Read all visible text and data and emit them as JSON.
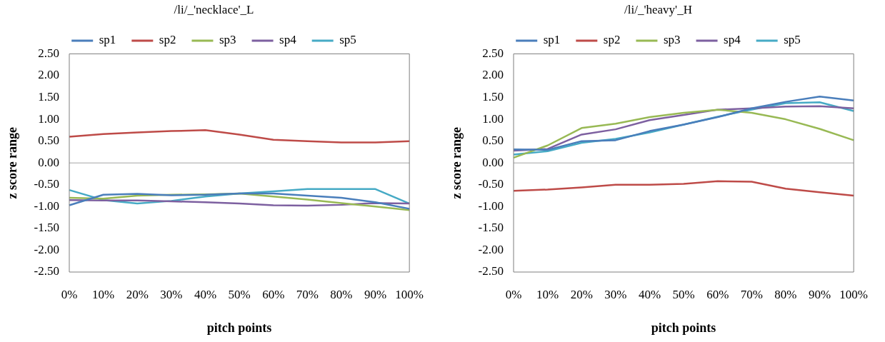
{
  "chart_data": [
    {
      "type": "line",
      "title": "/li/_'necklace'_L",
      "xlabel": "pitch points",
      "ylabel": "z score range",
      "categories": [
        "0%",
        "10%",
        "20%",
        "30%",
        "40%",
        "50%",
        "60%",
        "70%",
        "80%",
        "90%",
        "100%"
      ],
      "series": [
        {
          "name": "sp1",
          "color": "#4a7ebb",
          "values": [
            -0.97,
            -0.73,
            -0.71,
            -0.74,
            -0.73,
            -0.7,
            -0.7,
            -0.75,
            -0.8,
            -0.9,
            -1.05
          ]
        },
        {
          "name": "sp2",
          "color": "#be4b48",
          "values": [
            0.6,
            0.66,
            0.7,
            0.73,
            0.75,
            0.65,
            0.53,
            0.5,
            0.47,
            0.47,
            0.5
          ]
        },
        {
          "name": "sp3",
          "color": "#98b954",
          "values": [
            -0.8,
            -0.82,
            -0.75,
            -0.73,
            -0.72,
            -0.7,
            -0.77,
            -0.84,
            -0.92,
            -1.0,
            -1.08
          ]
        },
        {
          "name": "sp4",
          "color": "#7d60a0",
          "values": [
            -0.85,
            -0.86,
            -0.86,
            -0.88,
            -0.9,
            -0.93,
            -0.97,
            -0.98,
            -0.96,
            -0.92,
            -0.93
          ]
        },
        {
          "name": "sp5",
          "color": "#46aac5",
          "values": [
            -0.62,
            -0.85,
            -0.93,
            -0.87,
            -0.77,
            -0.7,
            -0.65,
            -0.6,
            -0.6,
            -0.6,
            -0.93
          ]
        }
      ],
      "ylim": [
        -2.5,
        2.5
      ],
      "yticks": [
        {
          "value": -2.5,
          "label": "-2.50"
        },
        {
          "value": -2,
          "label": "-2.00"
        },
        {
          "value": -1.5,
          "label": "-1.50"
        },
        {
          "value": -1,
          "label": "-1.00"
        },
        {
          "value": -0.5,
          "label": "-0.50"
        },
        {
          "value": 0,
          "label": "0.00"
        },
        {
          "value": 0.5,
          "label": "0.50"
        },
        {
          "value": 1,
          "label": "1.00"
        },
        {
          "value": 1.5,
          "label": "1.50"
        },
        {
          "value": 2,
          "label": "2.00"
        },
        {
          "value": 2.5,
          "label": "2.50"
        }
      ],
      "ref_lines": [
        {
          "axis": "y",
          "value": 0,
          "color": "#a6a6a6"
        }
      ],
      "legend": "top",
      "grid": false,
      "marker": "none",
      "line_style": "solid"
    },
    {
      "type": "line",
      "title": "/li/_'heavy'_H",
      "xlabel": "pitch points",
      "ylabel": "z score range",
      "categories": [
        "0%",
        "10%",
        "20%",
        "30%",
        "40%",
        "50%",
        "60%",
        "70%",
        "80%",
        "90%",
        "100%"
      ],
      "series": [
        {
          "name": "sp1",
          "color": "#4a7ebb",
          "values": [
            0.31,
            0.3,
            0.5,
            0.52,
            0.73,
            0.88,
            1.05,
            1.25,
            1.4,
            1.52,
            1.43
          ]
        },
        {
          "name": "sp2",
          "color": "#be4b48",
          "values": [
            -0.64,
            -0.61,
            -0.56,
            -0.5,
            -0.5,
            -0.48,
            -0.42,
            -0.43,
            -0.59,
            -0.67,
            -0.75
          ]
        },
        {
          "name": "sp3",
          "color": "#98b954",
          "values": [
            0.12,
            0.4,
            0.8,
            0.9,
            1.05,
            1.15,
            1.22,
            1.15,
            1.0,
            0.78,
            0.52
          ]
        },
        {
          "name": "sp4",
          "color": "#7d60a0",
          "values": [
            0.28,
            0.32,
            0.65,
            0.77,
            0.98,
            1.1,
            1.22,
            1.25,
            1.29,
            1.3,
            1.25
          ]
        },
        {
          "name": "sp5",
          "color": "#46aac5",
          "values": [
            0.19,
            0.27,
            0.46,
            0.55,
            0.7,
            0.88,
            1.06,
            1.22,
            1.37,
            1.39,
            1.19
          ]
        }
      ],
      "ylim": [
        -2.5,
        2.5
      ],
      "yticks": [
        {
          "value": -2.5,
          "label": "-2.50"
        },
        {
          "value": -2,
          "label": "-2.00"
        },
        {
          "value": -1.5,
          "label": "-1.50"
        },
        {
          "value": -1,
          "label": "-1.00"
        },
        {
          "value": -0.5,
          "label": "-0.50"
        },
        {
          "value": 0,
          "label": "0.00"
        },
        {
          "value": 0.5,
          "label": "0.50"
        },
        {
          "value": 1,
          "label": "1.00"
        },
        {
          "value": 1.5,
          "label": "1.50"
        },
        {
          "value": 2,
          "label": "2.00"
        },
        {
          "value": 2.5,
          "label": "2.50"
        }
      ],
      "ref_lines": [
        {
          "axis": "y",
          "value": 0,
          "color": "#a6a6a6"
        }
      ],
      "legend": "top",
      "grid": false,
      "marker": "none",
      "line_style": "solid"
    }
  ]
}
